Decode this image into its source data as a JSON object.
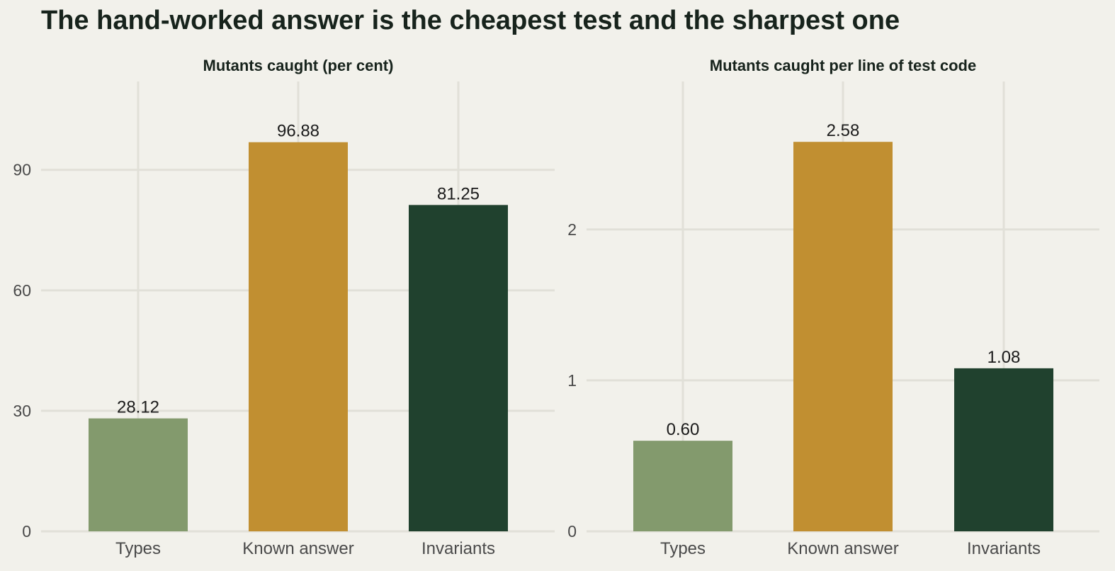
{
  "title": "The hand-worked answer is the cheapest test and the sharpest one",
  "colors": {
    "background": "#f2f1eb",
    "grid": "#e1e0d8",
    "Types": "#839a6d",
    "Known answer": "#c18f31",
    "Invariants": "#20412e"
  },
  "chart_data": [
    {
      "type": "bar",
      "title": "Mutants caught (per cent)",
      "categories": [
        "Types",
        "Known answer",
        "Invariants"
      ],
      "values": [
        28.12,
        96.88,
        81.25
      ],
      "data_labels": [
        "28.12",
        "96.88",
        "81.25"
      ],
      "yticks": [
        0,
        30,
        60,
        90
      ],
      "ylim": [
        0,
        112
      ],
      "xlabel": "",
      "ylabel": "",
      "grid": true,
      "legend": "none"
    },
    {
      "type": "bar",
      "title": "Mutants caught per line of test code",
      "categories": [
        "Types",
        "Known answer",
        "Invariants"
      ],
      "values": [
        0.6,
        2.58,
        1.08
      ],
      "data_labels": [
        "0.60",
        "2.58",
        "1.08"
      ],
      "yticks": [
        0,
        1,
        2
      ],
      "ylim": [
        0,
        2.98
      ],
      "xlabel": "",
      "ylabel": "",
      "grid": true,
      "legend": "none"
    }
  ]
}
